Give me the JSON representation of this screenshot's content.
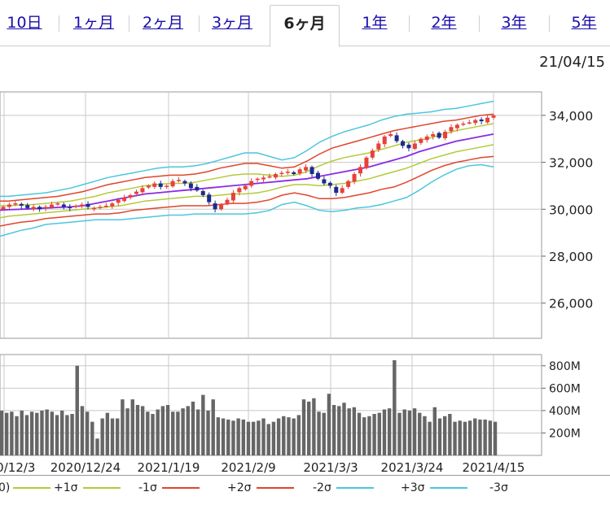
{
  "tabs": [
    {
      "label": "10日",
      "active": false
    },
    {
      "label": "1ヶ月",
      "active": false
    },
    {
      "label": "2ヶ月",
      "active": false
    },
    {
      "label": "3ヶ月",
      "active": false
    },
    {
      "label": "6ヶ月",
      "active": true
    },
    {
      "label": "1年",
      "active": false
    },
    {
      "label": "2年",
      "active": false
    },
    {
      "label": "3年",
      "active": false
    },
    {
      "label": "5年",
      "active": false
    }
  ],
  "date_label": "21/04/15",
  "legend": [
    {
      "label": "0)",
      "color": "#8a2be2"
    },
    {
      "label": "+1σ",
      "color": "#b5c93a"
    },
    {
      "label": "-1σ",
      "color": "#b5c93a"
    },
    {
      "label": "+2σ",
      "color": "#e0452d"
    },
    {
      "label": "-2σ",
      "color": "#e0452d"
    },
    {
      "label": "+3σ",
      "color": "#4cc6dd"
    },
    {
      "label": "-3σ",
      "color": "#4cc6dd"
    }
  ],
  "chart_data": [
    {
      "type": "candlestick",
      "title": "",
      "ylim": [
        24500,
        35000
      ],
      "yticks": [
        "34,000",
        "32,000",
        "30,000",
        "28,000",
        "26,000"
      ],
      "xticks": [
        "2020/12/3",
        "2020/12/24",
        "2021/1/19",
        "2021/2/9",
        "2021/3/3",
        "2021/3/24",
        "2021/4/15"
      ],
      "colors": {
        "up": "#e8413a",
        "down": "#1b2a8c",
        "middle": "#8a2be2",
        "sigma1": "#b5c93a",
        "sigma2": "#e0452d",
        "sigma3": "#4cc6dd"
      },
      "closes": [
        30100,
        30200,
        30250,
        30150,
        30050,
        30100,
        30000,
        30100,
        30200,
        30250,
        30100,
        30050,
        30150,
        30200,
        30100,
        30050,
        30100,
        30150,
        30250,
        30400,
        30500,
        30600,
        30750,
        30900,
        31000,
        31100,
        30950,
        31000,
        31200,
        31250,
        31100,
        30900,
        30800,
        30600,
        30300,
        30000,
        30200,
        30400,
        30700,
        30900,
        31000,
        31200,
        31300,
        31350,
        31400,
        31500,
        31550,
        31600,
        31500,
        31700,
        31800,
        31500,
        31300,
        31100,
        31000,
        30700,
        30900,
        31200,
        31500,
        31800,
        32200,
        32500,
        32800,
        33100,
        33200,
        32900,
        32700,
        32600,
        32800,
        33000,
        33100,
        33200,
        33050,
        33300,
        33500,
        33600,
        33650,
        33700,
        33800,
        33750,
        33900,
        34000
      ],
      "bands": {
        "middle": [
          29950,
          29980,
          30000,
          30020,
          30050,
          30080,
          30100,
          30150,
          30250,
          30350,
          30450,
          30550,
          30650,
          30700,
          30750,
          30800,
          30850,
          30900,
          30950,
          31000,
          31050,
          31100,
          31150,
          31200,
          31250,
          31300,
          31400,
          31500,
          31600,
          31700,
          31800,
          31950,
          32100,
          32250,
          32450,
          32600,
          32750,
          32900,
          33000,
          33100,
          33200
        ],
        "plus1": [
          30150,
          30150,
          30180,
          30200,
          30250,
          30300,
          30350,
          30450,
          30550,
          30700,
          30800,
          30900,
          31000,
          31050,
          31100,
          31100,
          31150,
          31250,
          31350,
          31450,
          31500,
          31500,
          31450,
          31400,
          31450,
          31600,
          31850,
          32050,
          32200,
          32300,
          32400,
          32550,
          32700,
          32850,
          32950,
          33050,
          33200,
          33350,
          33450,
          33550,
          33650
        ],
        "minus1": [
          29600,
          29700,
          29750,
          29800,
          29850,
          29900,
          29950,
          30000,
          30050,
          30100,
          30150,
          30250,
          30350,
          30400,
          30450,
          30500,
          30550,
          30550,
          30600,
          30650,
          30650,
          30700,
          30800,
          30950,
          31050,
          31050,
          31000,
          31050,
          31100,
          31200,
          31300,
          31450,
          31600,
          31750,
          31950,
          32150,
          32300,
          32450,
          32550,
          32650,
          32750
        ],
        "plus2": [
          30350,
          30350,
          30400,
          30450,
          30500,
          30550,
          30650,
          30750,
          30900,
          31050,
          31150,
          31250,
          31350,
          31400,
          31450,
          31450,
          31500,
          31600,
          31750,
          31850,
          31950,
          31950,
          31850,
          31750,
          31800,
          32050,
          32350,
          32600,
          32750,
          32900,
          33050,
          33200,
          33350,
          33450,
          33550,
          33650,
          33750,
          33800,
          33900,
          34000,
          34050
        ],
        "minus2": [
          29250,
          29350,
          29450,
          29500,
          29600,
          29650,
          29700,
          29750,
          29800,
          29800,
          29850,
          29950,
          30000,
          30050,
          30100,
          30150,
          30150,
          30150,
          30200,
          30250,
          30250,
          30300,
          30400,
          30600,
          30700,
          30600,
          30450,
          30450,
          30500,
          30600,
          30700,
          30850,
          30950,
          31150,
          31400,
          31650,
          31850,
          32000,
          32100,
          32200,
          32250
        ],
        "plus3": [
          30550,
          30550,
          30600,
          30650,
          30700,
          30800,
          30900,
          31050,
          31200,
          31350,
          31450,
          31550,
          31650,
          31750,
          31800,
          31800,
          31850,
          31950,
          32100,
          32250,
          32400,
          32400,
          32250,
          32100,
          32200,
          32500,
          32850,
          33100,
          33300,
          33450,
          33600,
          33800,
          33950,
          34050,
          34100,
          34150,
          34250,
          34300,
          34400,
          34500,
          34600
        ],
        "minus3": [
          28800,
          28950,
          29100,
          29200,
          29350,
          29400,
          29450,
          29500,
          29550,
          29550,
          29550,
          29600,
          29650,
          29700,
          29750,
          29750,
          29800,
          29800,
          29800,
          29800,
          29800,
          29850,
          29950,
          30200,
          30300,
          30150,
          29950,
          29900,
          29950,
          30050,
          30100,
          30200,
          30350,
          30500,
          30800,
          31150,
          31450,
          31700,
          31850,
          31900,
          31800
        ]
      }
    },
    {
      "type": "bar",
      "title": "",
      "ylim": [
        0,
        900
      ],
      "yticks": [
        "800M",
        "600M",
        "400M",
        "200M"
      ],
      "values": [
        400,
        380,
        390,
        350,
        400,
        360,
        390,
        380,
        400,
        410,
        390,
        360,
        400,
        360,
        370,
        800,
        440,
        390,
        300,
        150,
        330,
        380,
        330,
        330,
        500,
        420,
        500,
        450,
        440,
        390,
        370,
        410,
        440,
        450,
        390,
        390,
        420,
        440,
        480,
        410,
        540,
        400,
        500,
        340,
        330,
        320,
        310,
        330,
        320,
        300,
        300,
        310,
        330,
        280,
        300,
        330,
        350,
        340,
        330,
        360,
        500,
        480,
        510,
        390,
        380,
        550,
        450,
        440,
        470,
        420,
        430,
        380,
        340,
        350,
        370,
        380,
        410,
        420,
        850,
        380,
        410,
        400,
        420,
        380,
        350,
        300,
        430,
        330,
        350,
        370,
        300,
        310,
        300,
        310,
        330,
        320,
        320,
        310,
        300
      ]
    }
  ]
}
